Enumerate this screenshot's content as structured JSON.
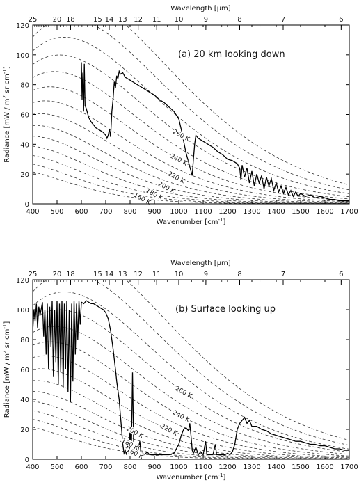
{
  "chart_data": [
    {
      "type": "line",
      "annotation": "(a)  20 km looking down",
      "xlabel": "Wavenumber [cm",
      "xlabel_sup": "-1",
      "xlabel_close": "]",
      "ylabel": "Radiance [mW / m",
      "ylabel_sup": "2",
      "ylabel_rest": " sr cm",
      "ylabel_sup2": "-1",
      "ylabel_close": "]",
      "top_axis_label": "Wavelength [µm]",
      "xlim": [
        400,
        1700
      ],
      "ylim": [
        0,
        120
      ],
      "x_ticks": [
        400,
        500,
        600,
        700,
        800,
        900,
        1000,
        1100,
        1200,
        1300,
        1400,
        1500,
        1600,
        1700
      ],
      "y_ticks": [
        0,
        20,
        40,
        60,
        80,
        100,
        120
      ],
      "top_ticks": [
        25,
        20,
        18,
        15,
        14,
        13,
        12,
        11,
        10,
        9,
        8,
        7,
        6
      ],
      "planck_curves_K": [
        160,
        170,
        180,
        190,
        200,
        210,
        220,
        230,
        240,
        250,
        260,
        270,
        280,
        290
      ],
      "curve_labels": [
        {
          "text": "260 K",
          "T": 260,
          "x": 1010
        },
        {
          "text": "240 K",
          "T": 240,
          "x": 1000
        },
        {
          "text": "220 K",
          "T": 220,
          "x": 990
        },
        {
          "text": "200 K",
          "T": 200,
          "x": 950
        },
        {
          "text": "180 K",
          "T": 180,
          "x": 900
        },
        {
          "text": "160 K",
          "T": 160,
          "x": 850
        }
      ],
      "spectrum": [
        [
          600,
          95
        ],
        [
          603,
          70
        ],
        [
          606,
          88
        ],
        [
          609,
          62
        ],
        [
          612,
          94
        ],
        [
          615,
          66
        ],
        [
          620,
          64
        ],
        [
          630,
          58
        ],
        [
          640,
          55
        ],
        [
          650,
          53
        ],
        [
          660,
          51
        ],
        [
          670,
          50
        ],
        [
          680,
          49
        ],
        [
          690,
          48
        ],
        [
          700,
          46
        ],
        [
          705,
          44
        ],
        [
          710,
          46
        ],
        [
          715,
          50
        ],
        [
          720,
          45
        ],
        [
          725,
          62
        ],
        [
          730,
          70
        ],
        [
          735,
          82
        ],
        [
          740,
          78
        ],
        [
          745,
          86
        ],
        [
          750,
          84
        ],
        [
          755,
          89
        ],
        [
          760,
          87
        ],
        [
          770,
          88
        ],
        [
          780,
          85
        ],
        [
          790,
          84
        ],
        [
          800,
          83
        ],
        [
          820,
          81
        ],
        [
          840,
          79
        ],
        [
          860,
          77
        ],
        [
          880,
          75
        ],
        [
          900,
          73
        ],
        [
          920,
          70
        ],
        [
          940,
          68
        ],
        [
          960,
          65
        ],
        [
          980,
          62
        ],
        [
          1000,
          57
        ],
        [
          1010,
          50
        ],
        [
          1020,
          42
        ],
        [
          1030,
          34
        ],
        [
          1040,
          28
        ],
        [
          1050,
          22
        ],
        [
          1055,
          19
        ],
        [
          1060,
          30
        ],
        [
          1065,
          40
        ],
        [
          1070,
          46
        ],
        [
          1080,
          44
        ],
        [
          1090,
          43
        ],
        [
          1100,
          42
        ],
        [
          1120,
          40
        ],
        [
          1140,
          38
        ],
        [
          1160,
          35
        ],
        [
          1180,
          33
        ],
        [
          1200,
          30
        ],
        [
          1220,
          29
        ],
        [
          1240,
          27
        ],
        [
          1250,
          24
        ],
        [
          1255,
          16
        ],
        [
          1260,
          26
        ],
        [
          1270,
          18
        ],
        [
          1280,
          24
        ],
        [
          1290,
          14
        ],
        [
          1300,
          22
        ],
        [
          1310,
          12
        ],
        [
          1320,
          20
        ],
        [
          1330,
          14
        ],
        [
          1340,
          19
        ],
        [
          1350,
          10
        ],
        [
          1360,
          18
        ],
        [
          1370,
          12
        ],
        [
          1380,
          17
        ],
        [
          1390,
          9
        ],
        [
          1400,
          14
        ],
        [
          1410,
          8
        ],
        [
          1420,
          12
        ],
        [
          1430,
          7
        ],
        [
          1440,
          11
        ],
        [
          1450,
          6
        ],
        [
          1460,
          9
        ],
        [
          1470,
          5
        ],
        [
          1480,
          8
        ],
        [
          1490,
          5
        ],
        [
          1500,
          7
        ],
        [
          1520,
          5
        ],
        [
          1540,
          6
        ],
        [
          1560,
          4
        ],
        [
          1580,
          5
        ],
        [
          1600,
          4
        ],
        [
          1620,
          3
        ],
        [
          1640,
          3
        ],
        [
          1660,
          2
        ],
        [
          1680,
          2
        ],
        [
          1700,
          2
        ]
      ]
    },
    {
      "type": "line",
      "annotation": "(b) Surface looking up",
      "xlabel": "Wavenumber [cm",
      "xlabel_sup": "-1",
      "xlabel_close": "]",
      "ylabel": "Radiance [mW / m",
      "ylabel_sup": "2",
      "ylabel_rest": " sr cm",
      "ylabel_sup2": "-1",
      "ylabel_close": "]",
      "top_axis_label": "Wavelength [µm]",
      "xlim": [
        400,
        1700
      ],
      "ylim": [
        0,
        120
      ],
      "x_ticks": [
        400,
        500,
        600,
        700,
        800,
        900,
        1000,
        1100,
        1200,
        1300,
        1400,
        1500,
        1600,
        1700
      ],
      "y_ticks": [
        0,
        20,
        40,
        60,
        80,
        100,
        120
      ],
      "top_ticks": [
        25,
        20,
        18,
        15,
        14,
        13,
        12,
        11,
        10,
        9,
        8,
        7,
        6
      ],
      "planck_curves_K": [
        160,
        170,
        180,
        190,
        200,
        210,
        220,
        230,
        240,
        250,
        260,
        270,
        280,
        290
      ],
      "curve_labels": [
        {
          "text": "260 K",
          "T": 260,
          "x": 1020
        },
        {
          "text": "240 K",
          "T": 240,
          "x": 1010
        },
        {
          "text": "220 K",
          "T": 220,
          "x": 960
        },
        {
          "text": "200 K",
          "T": 200,
          "x": 820
        },
        {
          "text": "180 K",
          "T": 180,
          "x": 800
        },
        {
          "text": "160 K",
          "T": 160,
          "x": 820
        }
      ],
      "spectrum": [
        [
          400,
          85
        ],
        [
          405,
          100
        ],
        [
          410,
          92
        ],
        [
          415,
          104
        ],
        [
          420,
          88
        ],
        [
          425,
          102
        ],
        [
          430,
          96
        ],
        [
          440,
          105
        ],
        [
          445,
          82
        ],
        [
          450,
          100
        ],
        [
          455,
          70
        ],
        [
          460,
          104
        ],
        [
          465,
          60
        ],
        [
          470,
          102
        ],
        [
          475,
          75
        ],
        [
          480,
          106
        ],
        [
          485,
          55
        ],
        [
          490,
          100
        ],
        [
          495,
          65
        ],
        [
          500,
          106
        ],
        [
          505,
          50
        ],
        [
          510,
          104
        ],
        [
          515,
          58
        ],
        [
          520,
          106
        ],
        [
          525,
          48
        ],
        [
          530,
          104
        ],
        [
          535,
          60
        ],
        [
          540,
          106
        ],
        [
          545,
          45
        ],
        [
          550,
          100
        ],
        [
          555,
          38
        ],
        [
          560,
          104
        ],
        [
          565,
          52
        ],
        [
          570,
          106
        ],
        [
          575,
          70
        ],
        [
          580,
          104
        ],
        [
          585,
          80
        ],
        [
          590,
          106
        ],
        [
          595,
          90
        ],
        [
          600,
          105
        ],
        [
          610,
          104
        ],
        [
          620,
          106
        ],
        [
          630,
          105
        ],
        [
          640,
          104
        ],
        [
          650,
          104
        ],
        [
          660,
          103
        ],
        [
          670,
          102
        ],
        [
          680,
          101
        ],
        [
          690,
          100
        ],
        [
          700,
          98
        ],
        [
          710,
          94
        ],
        [
          720,
          86
        ],
        [
          730,
          74
        ],
        [
          740,
          60
        ],
        [
          745,
          52
        ],
        [
          750,
          46
        ],
        [
          755,
          40
        ],
        [
          760,
          30
        ],
        [
          765,
          20
        ],
        [
          770,
          10
        ],
        [
          775,
          4
        ],
        [
          780,
          6
        ],
        [
          785,
          3
        ],
        [
          790,
          10
        ],
        [
          795,
          4
        ],
        [
          800,
          20
        ],
        [
          805,
          3
        ],
        [
          810,
          58
        ],
        [
          815,
          4
        ],
        [
          820,
          6
        ],
        [
          830,
          4
        ],
        [
          840,
          12
        ],
        [
          845,
          3
        ],
        [
          850,
          4
        ],
        [
          860,
          3
        ],
        [
          870,
          5
        ],
        [
          880,
          3
        ],
        [
          900,
          3
        ],
        [
          920,
          3
        ],
        [
          940,
          3
        ],
        [
          960,
          3
        ],
        [
          980,
          4
        ],
        [
          1000,
          10
        ],
        [
          1010,
          16
        ],
        [
          1020,
          20
        ],
        [
          1030,
          21
        ],
        [
          1040,
          19
        ],
        [
          1045,
          24
        ],
        [
          1050,
          16
        ],
        [
          1055,
          6
        ],
        [
          1060,
          4
        ],
        [
          1070,
          8
        ],
        [
          1080,
          3
        ],
        [
          1090,
          5
        ],
        [
          1100,
          3
        ],
        [
          1110,
          12
        ],
        [
          1115,
          3
        ],
        [
          1120,
          3
        ],
        [
          1140,
          3
        ],
        [
          1150,
          10
        ],
        [
          1155,
          3
        ],
        [
          1160,
          3
        ],
        [
          1180,
          3
        ],
        [
          1190,
          3
        ],
        [
          1200,
          4
        ],
        [
          1210,
          3
        ],
        [
          1220,
          5
        ],
        [
          1230,
          10
        ],
        [
          1240,
          20
        ],
        [
          1250,
          24
        ],
        [
          1260,
          26
        ],
        [
          1270,
          28
        ],
        [
          1280,
          24
        ],
        [
          1290,
          26
        ],
        [
          1300,
          22
        ],
        [
          1320,
          22
        ],
        [
          1340,
          20
        ],
        [
          1360,
          19
        ],
        [
          1380,
          17
        ],
        [
          1400,
          16
        ],
        [
          1420,
          15
        ],
        [
          1440,
          14
        ],
        [
          1460,
          13
        ],
        [
          1480,
          12
        ],
        [
          1500,
          12
        ],
        [
          1520,
          11
        ],
        [
          1540,
          10
        ],
        [
          1560,
          10
        ],
        [
          1580,
          9
        ],
        [
          1600,
          9
        ],
        [
          1620,
          8
        ],
        [
          1640,
          7
        ],
        [
          1660,
          7
        ],
        [
          1680,
          6
        ],
        [
          1700,
          6
        ]
      ]
    }
  ]
}
